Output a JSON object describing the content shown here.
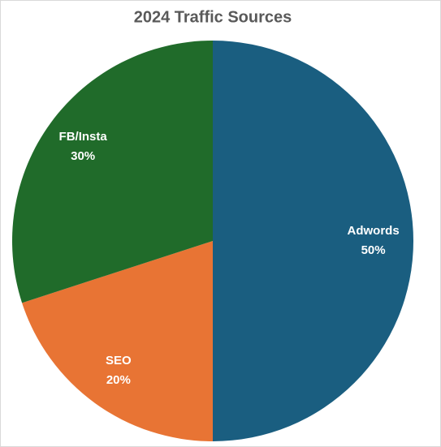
{
  "chart_data": {
    "type": "pie",
    "title": "2024 Traffic Sources",
    "categories": [
      "Adwords",
      "SEO",
      "FB/Insta"
    ],
    "values": [
      50,
      20,
      30
    ],
    "value_labels": [
      "50%",
      "20%",
      "30%"
    ],
    "colors": [
      "#1a5e80",
      "#e87434",
      "#206b2a"
    ]
  }
}
